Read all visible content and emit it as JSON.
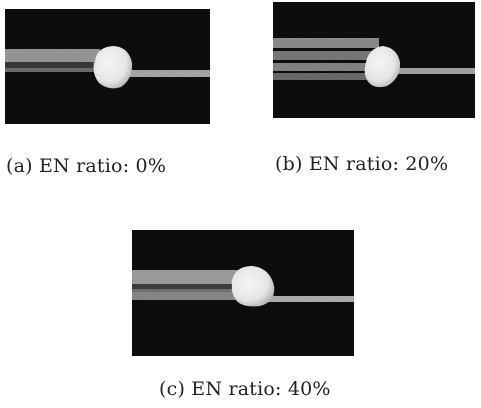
{
  "figure": {
    "panels": [
      {
        "id": "a",
        "caption": "(a) EN ratio: 0%"
      },
      {
        "id": "b",
        "caption": "(b) EN ratio: 20%"
      },
      {
        "id": "c",
        "caption": "(c) EN ratio: 40%"
      }
    ]
  }
}
